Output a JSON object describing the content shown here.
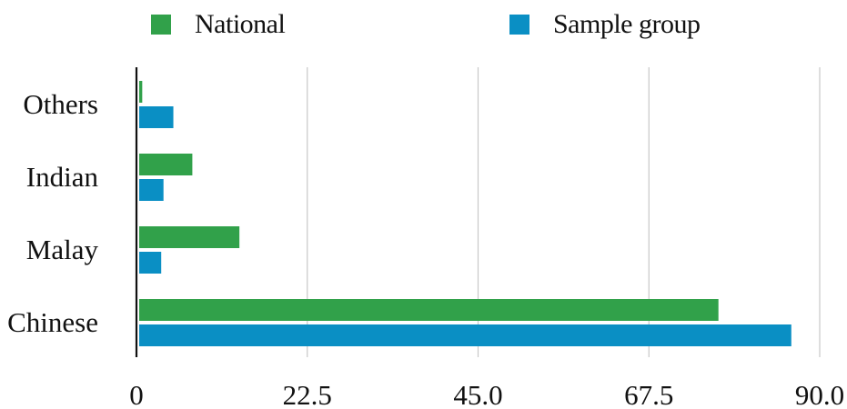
{
  "chart_data": {
    "type": "bar",
    "orientation": "horizontal",
    "title": "",
    "xlabel": "",
    "ylabel": "",
    "categories": [
      "Others",
      "Indian",
      "Malay",
      "Chinese"
    ],
    "series": [
      {
        "name": "National",
        "color": "#31a14a",
        "values": [
          0.4,
          7.0,
          13.2,
          76.3
        ]
      },
      {
        "name": "Sample group",
        "color": "#0a8fc4",
        "values": [
          4.5,
          3.2,
          2.9,
          85.9
        ]
      }
    ],
    "xlim": [
      0,
      90
    ],
    "xticks": [
      "0",
      "22.5",
      "45.0",
      "67.5",
      "90.0"
    ],
    "xtick_values": [
      0,
      22.5,
      45.0,
      67.5,
      90.0
    ],
    "grid": "vertical",
    "legend_position": "top"
  }
}
